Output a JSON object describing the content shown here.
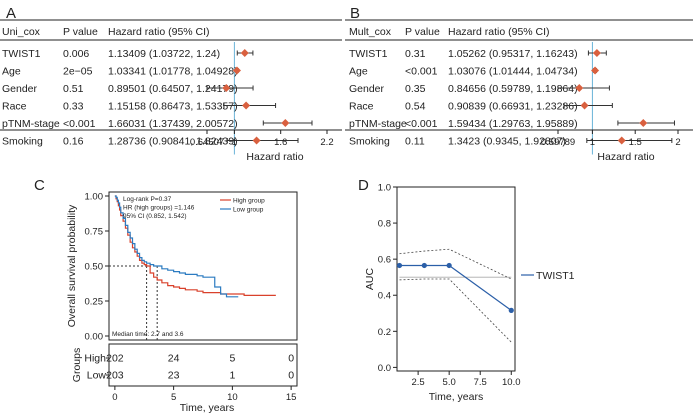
{
  "chart_data": [
    {
      "type": "forest",
      "panel": "A",
      "headers": [
        "Uni_cox",
        "P value",
        "Hazard ratio (95% CI)"
      ],
      "rows": [
        {
          "name": "TWIST1",
          "p": "0.006",
          "ci_text": "1.13409 (1.03722, 1.24)",
          "hr": 1.13409,
          "lo": 1.03722,
          "hi": 1.24
        },
        {
          "name": "Age",
          "p": "2e−05",
          "ci_text": "1.03341 (1.01778, 1.04928)",
          "hr": 1.03341,
          "lo": 1.01778,
          "hi": 1.04928
        },
        {
          "name": "Gender",
          "p": "0.51",
          "ci_text": "0.89501 (0.64507, 1.24179)",
          "hr": 0.89501,
          "lo": 0.64507,
          "hi": 1.24179
        },
        {
          "name": "Race",
          "p": "0.33",
          "ci_text": "1.15158 (0.86473, 1.53357)",
          "hr": 1.15158,
          "lo": 0.86473,
          "hi": 1.53357
        },
        {
          "name": "pTNM-stage",
          "p": "<0.001",
          "ci_text": "1.66031 (1.37439, 2.00572)",
          "hr": 1.66031,
          "lo": 1.37439,
          "hi": 2.00572
        },
        {
          "name": "Smoking",
          "p": "0.16",
          "ci_text": "1.28736 (0.90841, 1.82439)",
          "hr": 1.28736,
          "lo": 0.90841,
          "hi": 1.82439
        }
      ],
      "x_ticks": [
        0.64507,
        1,
        1.6,
        2.2
      ],
      "x_tick_labels": [
        "0.64507",
        "1",
        "1.6",
        "2.2"
      ],
      "xlim": [
        0.64507,
        2.2
      ],
      "xlabel": "Hazard ratio"
    },
    {
      "type": "forest",
      "panel": "B",
      "headers": [
        "Mult_cox",
        "P value",
        "Hazard ratio (95% CI)"
      ],
      "rows": [
        {
          "name": "TWIST1",
          "p": "0.31",
          "ci_text": "1.05262 (0.95317, 1.16243)",
          "hr": 1.05262,
          "lo": 0.95317,
          "hi": 1.16243
        },
        {
          "name": "Age",
          "p": "<0.001",
          "ci_text": "1.03076 (1.01444, 1.04734)",
          "hr": 1.03076,
          "lo": 1.01444,
          "hi": 1.04734
        },
        {
          "name": "Gender",
          "p": "0.35",
          "ci_text": "0.84656 (0.59789, 1.19864)",
          "hr": 0.84656,
          "lo": 0.59789,
          "hi": 1.19864
        },
        {
          "name": "Race",
          "p": "0.54",
          "ci_text": "0.90839 (0.66931, 1.23286)",
          "hr": 0.90839,
          "lo": 0.66931,
          "hi": 1.23286
        },
        {
          "name": "pTNM-stage",
          "p": "<0.001",
          "ci_text": "1.59434 (1.29763, 1.95889)",
          "hr": 1.59434,
          "lo": 1.29763,
          "hi": 1.95889
        },
        {
          "name": "Smoking",
          "p": "0.11",
          "ci_text": "1.3423 (0.9345, 1.92807)",
          "hr": 1.3423,
          "lo": 0.9345,
          "hi": 1.92807
        }
      ],
      "x_ticks": [
        0.59789,
        1,
        1.5,
        2
      ],
      "x_tick_labels": [
        "0.59789",
        "1",
        "1.5",
        "2"
      ],
      "xlim": [
        0.59789,
        2.0
      ],
      "xlabel": "Hazard ratio"
    },
    {
      "type": "line",
      "subtype": "kaplan-meier",
      "panel": "C",
      "ylabel": "Overall survival probability",
      "xlabel": "Time, years",
      "xlim": [
        -0.5,
        15.5
      ],
      "ylim": [
        0,
        1.0
      ],
      "x_ticks": [
        0,
        5,
        10,
        15
      ],
      "y_ticks": [
        0.0,
        0.25,
        0.5,
        0.75,
        1.0
      ],
      "y_tick_labels": [
        "0.00",
        "0.25",
        "0.50",
        "0.75",
        "1.00"
      ],
      "annotation": [
        "Log-rank P=0.37",
        "HR (high groups) =1.146",
        "95% CI (0.852, 1.542)"
      ],
      "median_text": "Median time: 2.7 and 3.6",
      "median_times": [
        2.7,
        3.6
      ],
      "legend": [
        "High group",
        "Low group"
      ],
      "series": [
        {
          "name": "High group",
          "color": "#d9412b",
          "x": [
            0,
            0.1,
            0.2,
            0.3,
            0.4,
            0.5,
            0.7,
            0.9,
            1.1,
            1.3,
            1.5,
            1.7,
            1.9,
            2.1,
            2.3,
            2.5,
            2.7,
            3.0,
            3.3,
            3.6,
            4.0,
            4.5,
            5.0,
            5.5,
            6.0,
            6.5,
            7.0,
            7.5,
            8.0,
            8.5,
            9.0,
            9.5,
            10.0,
            11.0,
            12.0,
            13.0,
            13.7
          ],
          "y": [
            1.0,
            0.98,
            0.96,
            0.93,
            0.9,
            0.86,
            0.82,
            0.77,
            0.72,
            0.67,
            0.63,
            0.6,
            0.57,
            0.54,
            0.52,
            0.51,
            0.5,
            0.45,
            0.42,
            0.4,
            0.38,
            0.36,
            0.35,
            0.34,
            0.33,
            0.33,
            0.32,
            0.31,
            0.31,
            0.31,
            0.3,
            0.3,
            0.3,
            0.29,
            0.29,
            0.29,
            0.29
          ]
        },
        {
          "name": "Low group",
          "color": "#2b7bc1",
          "x": [
            0,
            0.1,
            0.2,
            0.3,
            0.4,
            0.5,
            0.7,
            0.9,
            1.1,
            1.3,
            1.5,
            1.7,
            1.9,
            2.1,
            2.3,
            2.5,
            2.7,
            3.0,
            3.3,
            3.6,
            4.0,
            4.5,
            5.0,
            5.5,
            6.0,
            6.5,
            7.0,
            7.5,
            8.0,
            8.5,
            9.0,
            9.5,
            10.0,
            10.5
          ],
          "y": [
            1.0,
            0.99,
            0.97,
            0.95,
            0.92,
            0.88,
            0.84,
            0.79,
            0.74,
            0.7,
            0.66,
            0.62,
            0.59,
            0.56,
            0.54,
            0.53,
            0.52,
            0.51,
            0.5,
            0.5,
            0.48,
            0.47,
            0.46,
            0.45,
            0.44,
            0.44,
            0.43,
            0.42,
            0.42,
            0.35,
            0.3,
            0.28,
            0.28,
            0.28
          ]
        }
      ],
      "risk_table": {
        "title": "Groups",
        "rows": [
          {
            "label": "High",
            "counts": [
              "202",
              "24",
              "5",
              "0"
            ]
          },
          {
            "label": "Low",
            "counts": [
              "203",
              "23",
              "1",
              "0"
            ]
          }
        ]
      }
    },
    {
      "type": "line",
      "panel": "D",
      "ylabel": "AUC",
      "xlabel": "Time, years",
      "x": [
        1,
        3,
        5,
        10
      ],
      "series": [
        {
          "name": "TWIST1",
          "color": "#2b5fa8",
          "values": [
            0.565,
            0.565,
            0.565,
            0.316
          ]
        },
        {
          "name": "upper",
          "color": "#444444",
          "values": [
            0.63,
            0.645,
            0.655,
            0.49
          ]
        },
        {
          "name": "lower",
          "color": "#444444",
          "values": [
            0.485,
            0.49,
            0.49,
            0.14
          ]
        },
        {
          "name": "reference",
          "color": "#aaaaaa",
          "values": [
            0.5,
            0.5,
            0.5,
            0.5
          ]
        }
      ],
      "xlim": [
        0.8,
        10.3
      ],
      "ylim": [
        -0.02,
        1.0
      ],
      "x_ticks": [
        2.5,
        5.0,
        7.5,
        10.0
      ],
      "x_tick_labels": [
        "2.5",
        "5.0",
        "7.5",
        "10.0"
      ],
      "y_ticks": [
        0.0,
        0.2,
        0.4,
        0.6,
        0.8,
        1.0
      ],
      "y_tick_labels": [
        "0.0",
        "0.2",
        "0.4",
        "0.6",
        "0.8",
        "1.0"
      ],
      "legend": [
        "TWIST1"
      ]
    }
  ]
}
